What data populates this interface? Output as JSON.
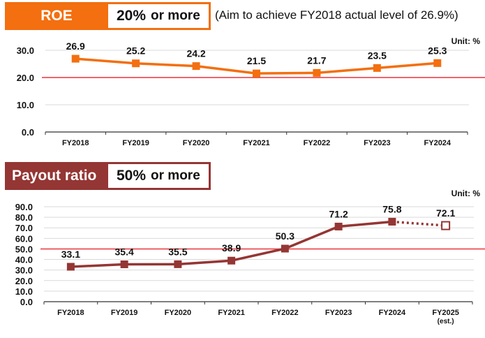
{
  "roe_header": {
    "label": "ROE",
    "target_value": "20%",
    "target_suffix": "or more",
    "note": "(Aim to achieve FY2018 actual level of 26.9%)"
  },
  "payout_header": {
    "label": "Payout ratio",
    "target_value": "50%",
    "target_suffix": "or more"
  },
  "colors": {
    "roe": "#f36f10",
    "payout": "#943634",
    "target_line": "#e8343a"
  },
  "chart_data": [
    {
      "type": "line",
      "title": "ROE",
      "unit": "Unit: %",
      "categories": [
        "FY2018",
        "FY2019",
        "FY2020",
        "FY2021",
        "FY2022",
        "FY2023",
        "FY2024"
      ],
      "sublabels": [
        "",
        "",
        "",
        "",
        "",
        "",
        ""
      ],
      "values": [
        26.9,
        25.2,
        24.2,
        21.5,
        21.7,
        23.5,
        25.3
      ],
      "labels": [
        "26.9",
        "25.2",
        "24.2",
        "21.5",
        "21.7",
        "23.5",
        "25.3"
      ],
      "ylim": [
        0,
        30
      ],
      "yticks": [
        "0.0",
        "10.0",
        "20.0",
        "30.0"
      ],
      "ytick_values": [
        0,
        10,
        20,
        30
      ],
      "target": 20,
      "estimate_index": null,
      "grid": true
    },
    {
      "type": "line",
      "title": "Payout ratio",
      "unit": "Unit: %",
      "categories": [
        "FY2018",
        "FY2019",
        "FY2020",
        "FY2021",
        "FY2022",
        "FY2023",
        "FY2024",
        "FY2025"
      ],
      "sublabels": [
        "",
        "",
        "",
        "",
        "",
        "",
        "",
        "(est.)"
      ],
      "values": [
        33.1,
        35.4,
        35.5,
        38.9,
        50.3,
        71.2,
        75.8,
        72.1
      ],
      "labels": [
        "33.1",
        "35.4",
        "35.5",
        "38.9",
        "50.3",
        "71.2",
        "75.8",
        "72.1"
      ],
      "ylim": [
        0,
        90
      ],
      "yticks": [
        "0.0",
        "10.0",
        "20.0",
        "30.0",
        "40.0",
        "50.0",
        "60.0",
        "70.0",
        "80.0",
        "90.0"
      ],
      "ytick_values": [
        0,
        10,
        20,
        30,
        40,
        50,
        60,
        70,
        80,
        90
      ],
      "target": 50,
      "estimate_index": 7,
      "grid": true
    }
  ]
}
